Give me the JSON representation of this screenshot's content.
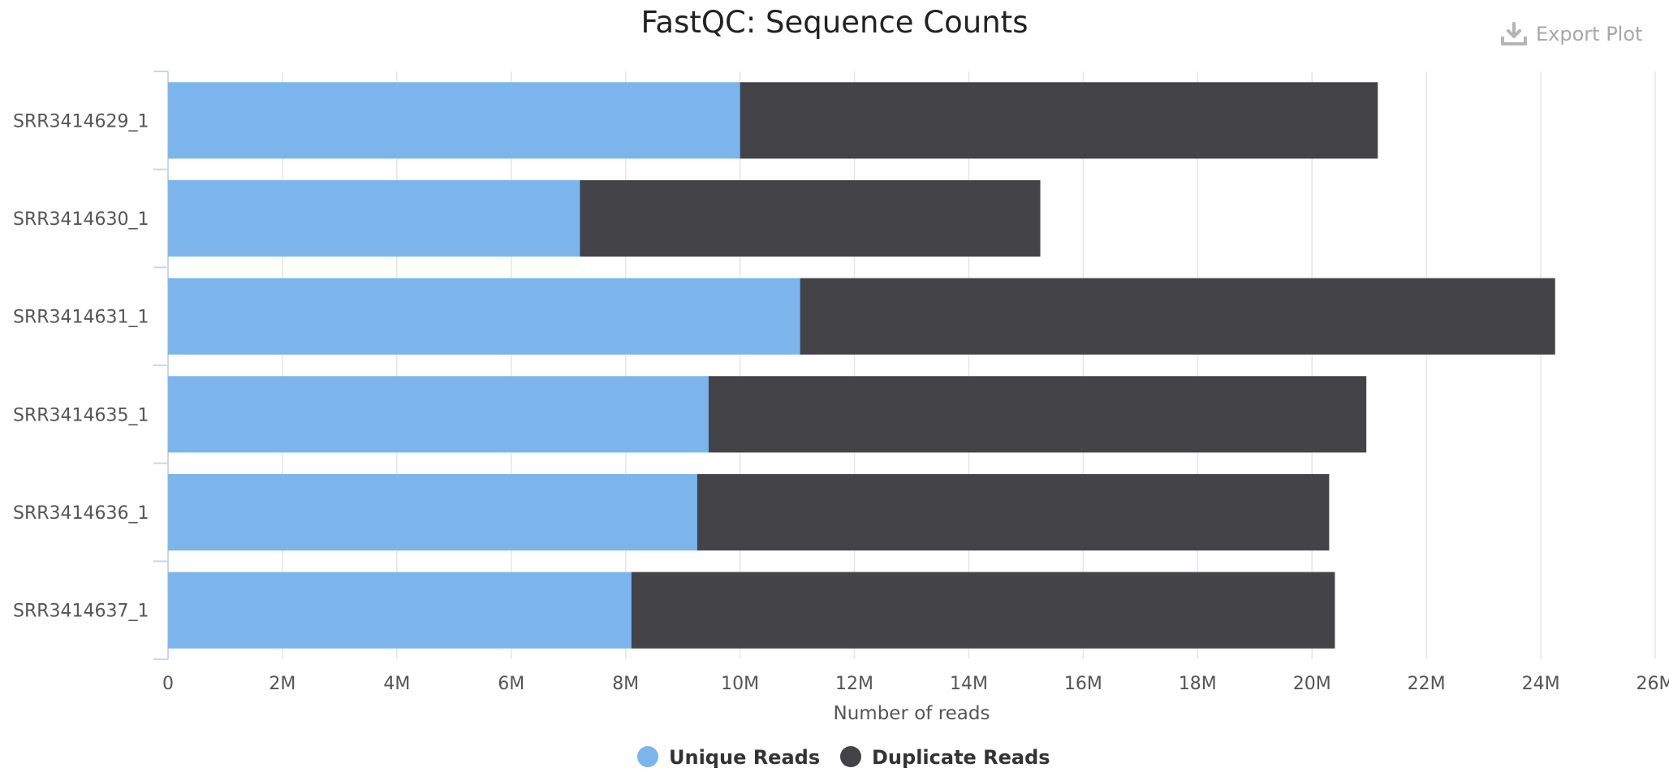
{
  "chart_data": {
    "type": "bar",
    "orientation": "horizontal",
    "stacked": true,
    "title": "FastQC: Sequence Counts",
    "xlabel": "Number of reads",
    "ylabel": "",
    "xlim": [
      0,
      26000000
    ],
    "x_ticks": [
      0,
      2000000,
      4000000,
      6000000,
      8000000,
      10000000,
      12000000,
      14000000,
      16000000,
      18000000,
      20000000,
      22000000,
      24000000,
      26000000
    ],
    "x_tick_labels": [
      "0",
      "2M",
      "4M",
      "6M",
      "8M",
      "10M",
      "12M",
      "14M",
      "16M",
      "18M",
      "20M",
      "22M",
      "24M",
      "26M"
    ],
    "categories": [
      "SRR3414629_1",
      "SRR3414630_1",
      "SRR3414631_1",
      "SRR3414635_1",
      "SRR3414636_1",
      "SRR3414637_1"
    ],
    "series": [
      {
        "name": "Unique Reads",
        "color": "#7cb5ec",
        "values": [
          10000000,
          7200000,
          11050000,
          9450000,
          9250000,
          8100000
        ]
      },
      {
        "name": "Duplicate Reads",
        "color": "#434348",
        "values": [
          11150000,
          8050000,
          13200000,
          11500000,
          11050000,
          12300000
        ]
      }
    ],
    "grid": true,
    "legend_position": "bottom-center"
  },
  "toolbar": {
    "export_label": "Export Plot",
    "export_icon": "download-icon"
  }
}
